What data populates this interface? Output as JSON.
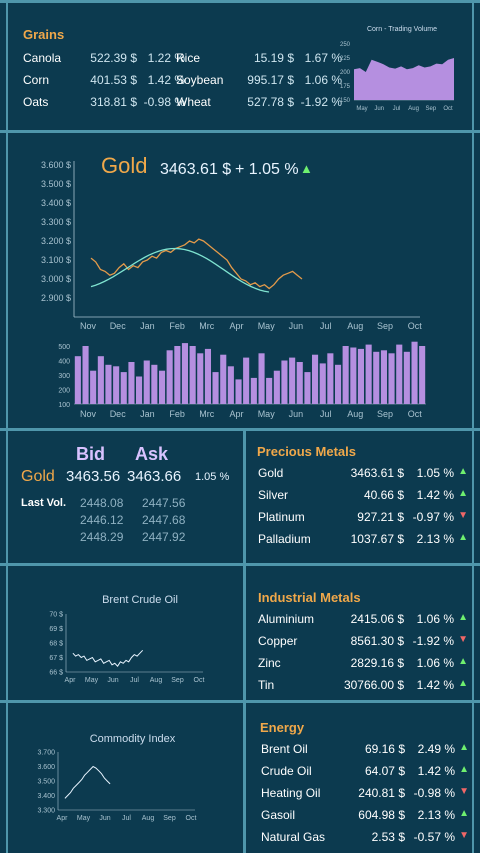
{
  "grains": {
    "title": "Grains",
    "items": [
      {
        "name": "Canola",
        "price": "522.39 $",
        "change": "1.22 %"
      },
      {
        "name": "Rice",
        "price": "15.19 $",
        "change": "1.67 %"
      },
      {
        "name": "Corn",
        "price": "401.53 $",
        "change": "1.42 %"
      },
      {
        "name": "Soybean",
        "price": "995.17 $",
        "change": "1.06 %"
      },
      {
        "name": "Oats",
        "price": "318.81 $",
        "change": "-0.98 %"
      },
      {
        "name": "Wheat",
        "price": "527.78 $",
        "change": "-1.92 %"
      }
    ]
  },
  "corn_chart": {
    "title": "Corn - Trading Volume",
    "yticks": [
      "250",
      "225",
      "200",
      "175",
      "150"
    ],
    "xticks": [
      "May",
      "Jun",
      "Jul",
      "Aug",
      "Sep",
      "Oct"
    ]
  },
  "gold": {
    "name": "Gold",
    "price": "3463.61 $",
    "change": "+ 1.05 %",
    "arrow": "▲",
    "yticks": [
      "3.600 $",
      "3.500 $",
      "3.400 $",
      "3.300 $",
      "3.200 $",
      "3.100 $",
      "3.000 $",
      "2.900 $"
    ],
    "xticks": [
      "Nov",
      "Dec",
      "Jan",
      "Feb",
      "Mrc",
      "Apr",
      "May",
      "Jun",
      "Jul",
      "Aug",
      "Sep",
      "Oct"
    ],
    "vol_yticks": [
      "500",
      "400",
      "300",
      "200",
      "100"
    ]
  },
  "bidask": {
    "bid_label": "Bid",
    "ask_label": "Ask",
    "name": "Gold",
    "bid": "3463.56",
    "ask": "3463.66",
    "change": "1.05 %",
    "last_vol_label": "Last Vol.",
    "rows": [
      {
        "bid": "2448.08",
        "ask": "2447.56"
      },
      {
        "bid": "2446.12",
        "ask": "2447.68"
      },
      {
        "bid": "2448.29",
        "ask": "2447.92"
      }
    ]
  },
  "precious": {
    "title": "Precious Metals",
    "items": [
      {
        "name": "Gold",
        "price": "3463.61 $",
        "change": "1.05 %",
        "dir": "▲"
      },
      {
        "name": "Silver",
        "price": "40.66 $",
        "change": "1.42 %",
        "dir": "▲"
      },
      {
        "name": "Platinum",
        "price": "927.21 $",
        "change": "-0.97 %",
        "dir": "▼"
      },
      {
        "name": "Palladium",
        "price": "1037.67 $",
        "change": "2.13 %",
        "dir": "▲"
      }
    ]
  },
  "brent": {
    "title": "Brent Crude Oil",
    "yticks": [
      "70 $",
      "69 $",
      "68 $",
      "67 $",
      "66 $"
    ],
    "xticks": [
      "Apr",
      "May",
      "Jun",
      "Jul",
      "Aug",
      "Sep",
      "Oct"
    ]
  },
  "industrial": {
    "title": "Industrial Metals",
    "items": [
      {
        "name": "Aluminium",
        "price": "2415.06 $",
        "change": "1.06 %",
        "dir": "▲"
      },
      {
        "name": "Copper",
        "price": "8561.30 $",
        "change": "-1.92 %",
        "dir": "▼"
      },
      {
        "name": "Zinc",
        "price": "2829.16 $",
        "change": "1.06 %",
        "dir": "▲"
      },
      {
        "name": "Tin",
        "price": "30766.00 $",
        "change": "1.42 %",
        "dir": "▲"
      }
    ]
  },
  "commodity": {
    "title": "Commodity Index",
    "yticks": [
      "3.700",
      "3.600",
      "3.500",
      "3.400",
      "3.300"
    ],
    "xticks": [
      "Apr",
      "May",
      "Jun",
      "Jul",
      "Aug",
      "Sep",
      "Oct"
    ]
  },
  "energy": {
    "title": "Energy",
    "items": [
      {
        "name": "Brent Oil",
        "price": "69.16 $",
        "change": "2.49 %",
        "dir": "▲"
      },
      {
        "name": "Crude Oil",
        "price": "64.07 $",
        "change": "1.42 %",
        "dir": "▲"
      },
      {
        "name": "Heating Oil",
        "price": "240.81 $",
        "change": "-0.98 %",
        "dir": "▼"
      },
      {
        "name": "Gasoil",
        "price": "604.98 $",
        "change": "2.13 %",
        "dir": "▲"
      },
      {
        "name": "Natural Gas",
        "price": "2.53 $",
        "change": "-0.57 %",
        "dir": "▼"
      }
    ]
  },
  "colors": {
    "background": "#0c3a4f",
    "accent_orange": "#f0a84a",
    "up": "#6ff06f",
    "down": "#f06767",
    "volume_purple": "#b58fe0",
    "trend_teal": "#7fe3d0"
  }
}
